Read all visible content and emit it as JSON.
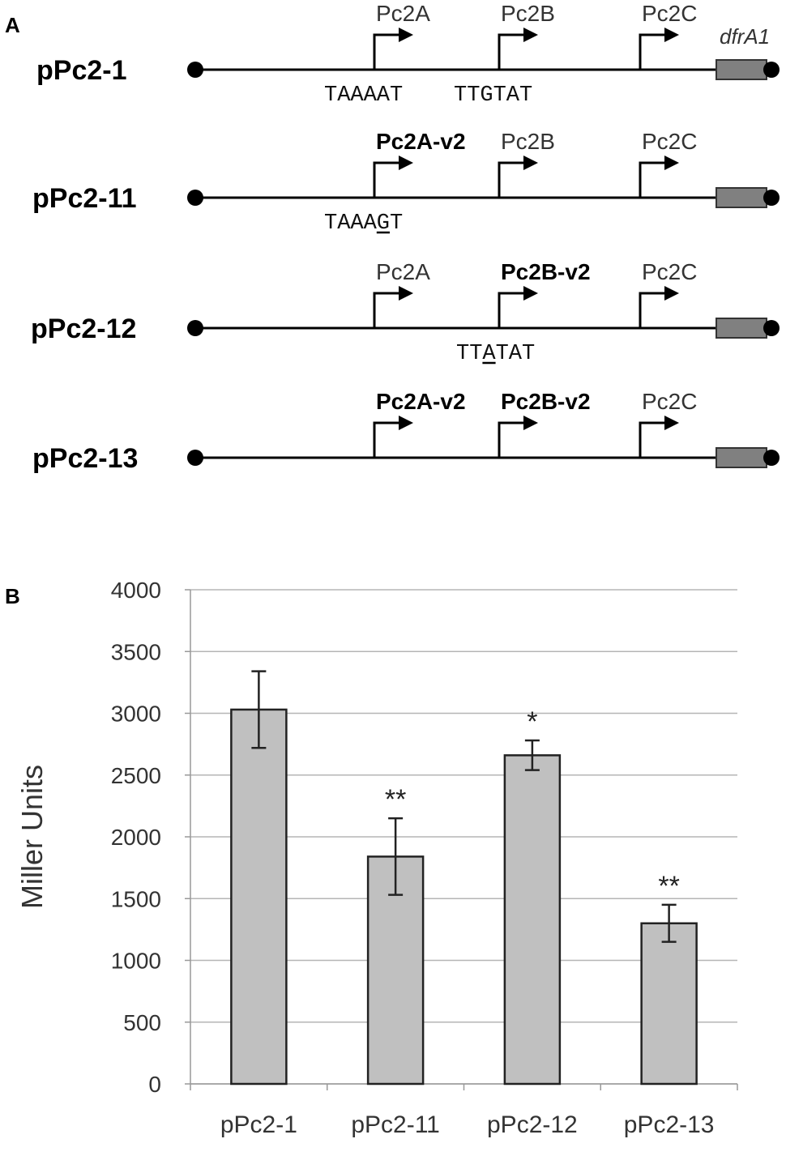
{
  "panel_a": {
    "label": "A",
    "gene_label": "dfrA1",
    "constructs": [
      {
        "name": "pPc2-1",
        "promoters": [
          {
            "label": "Pc2A",
            "bold": false
          },
          {
            "label": "Pc2B",
            "bold": false
          },
          {
            "label": "Pc2C",
            "bold": false
          }
        ],
        "sequences": [
          {
            "text": "TAAAAT",
            "mutated_index": -1
          },
          {
            "text": "TTGTAT",
            "mutated_index": -1
          }
        ]
      },
      {
        "name": "pPc2-11",
        "promoters": [
          {
            "label": "Pc2A-v2",
            "bold": true
          },
          {
            "label": "Pc2B",
            "bold": false
          },
          {
            "label": "Pc2C",
            "bold": false
          }
        ],
        "sequences": [
          {
            "text": "TAAAGT",
            "mutated_index": 4
          }
        ]
      },
      {
        "name": "pPc2-12",
        "promoters": [
          {
            "label": "Pc2A",
            "bold": false
          },
          {
            "label": "Pc2B-v2",
            "bold": true
          },
          {
            "label": "Pc2C",
            "bold": false
          }
        ],
        "sequences": [
          {
            "text": "TTATAT",
            "mutated_index": 2
          }
        ]
      },
      {
        "name": "pPc2-13",
        "promoters": [
          {
            "label": "Pc2A-v2",
            "bold": true
          },
          {
            "label": "Pc2B-v2",
            "bold": true
          },
          {
            "label": "Pc2C",
            "bold": false
          }
        ],
        "sequences": []
      }
    ]
  },
  "panel_b": {
    "label": "B"
  },
  "chart_data": {
    "type": "bar",
    "title": "",
    "xlabel": "",
    "ylabel": "Miller Units",
    "ylim": [
      0,
      4000
    ],
    "yticks": [
      0,
      500,
      1000,
      1500,
      2000,
      2500,
      3000,
      3500,
      4000
    ],
    "grid": true,
    "categories": [
      "pPc2-1",
      "pPc2-11",
      "pPc2-12",
      "pPc2-13"
    ],
    "values": [
      3030,
      1840,
      2660,
      1300
    ],
    "error": [
      310,
      310,
      120,
      150
    ],
    "significance": [
      "",
      "**",
      "*",
      "**"
    ],
    "bar_color": "#c0c0c0"
  }
}
